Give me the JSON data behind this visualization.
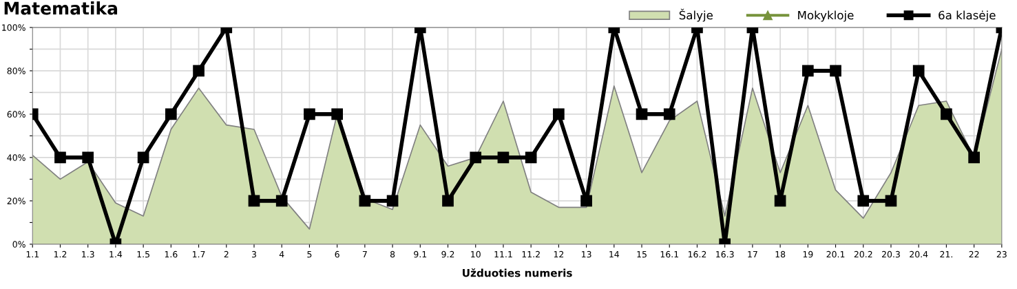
{
  "chart_data": {
    "type": "line",
    "title": "Matematika",
    "xlabel": "Užduoties numeris",
    "categories": [
      "1.1",
      "1.2",
      "1.3",
      "1.4",
      "1.5",
      "1.6",
      "1.7",
      "2",
      "3",
      "4",
      "5",
      "6",
      "7",
      "8",
      "9.1",
      "9.2",
      "10",
      "11.1",
      "11.2",
      "12",
      "13",
      "14",
      "15",
      "16.1",
      "16.2",
      "16.3",
      "17",
      "18",
      "19",
      "20.1",
      "20.2",
      "20.3",
      "20.4",
      "21.",
      "22",
      "23"
    ],
    "series": [
      {
        "name": "Šalyje",
        "type": "area",
        "color": "#d0dfb0",
        "values": [
          41,
          30,
          38,
          19,
          13,
          53,
          72,
          55,
          53,
          22,
          7,
          60,
          21,
          16,
          55,
          36,
          40,
          66,
          24,
          17,
          17,
          73,
          33,
          57,
          66,
          13,
          72,
          33,
          64,
          25,
          12,
          33,
          64,
          66,
          40,
          90
        ]
      },
      {
        "name": "Mokykloje",
        "marker": "triangle",
        "color": "#77933c",
        "values": [
          null,
          null,
          null,
          null,
          null,
          null,
          null,
          null,
          null,
          null,
          null,
          null,
          null,
          null,
          null,
          null,
          null,
          null,
          null,
          null,
          null,
          null,
          null,
          null,
          null,
          null,
          null,
          null,
          null,
          null,
          null,
          null,
          null,
          null,
          null,
          null
        ]
      },
      {
        "name": "6a klasėje",
        "marker": "square",
        "color": "#000000",
        "values": [
          60,
          40,
          40,
          0,
          40,
          60,
          80,
          100,
          20,
          20,
          60,
          60,
          20,
          20,
          100,
          20,
          40,
          40,
          40,
          60,
          20,
          100,
          60,
          60,
          100,
          0,
          100,
          20,
          80,
          80,
          20,
          20,
          80,
          60,
          40,
          100
        ]
      }
    ],
    "ylim": [
      0,
      100
    ],
    "yticks": [
      {
        "value": 0,
        "label": "0%"
      },
      {
        "value": 10,
        "label": null
      },
      {
        "value": 20,
        "label": "20%"
      },
      {
        "value": 30,
        "label": null
      },
      {
        "value": 40,
        "label": "40%"
      },
      {
        "value": 50,
        "label": null
      },
      {
        "value": 60,
        "label": "60%"
      },
      {
        "value": 70,
        "label": null
      },
      {
        "value": 80,
        "label": "80%"
      },
      {
        "value": 90,
        "label": null
      },
      {
        "value": 100,
        "label": "100%"
      }
    ],
    "grid": true,
    "legend": "top right"
  }
}
